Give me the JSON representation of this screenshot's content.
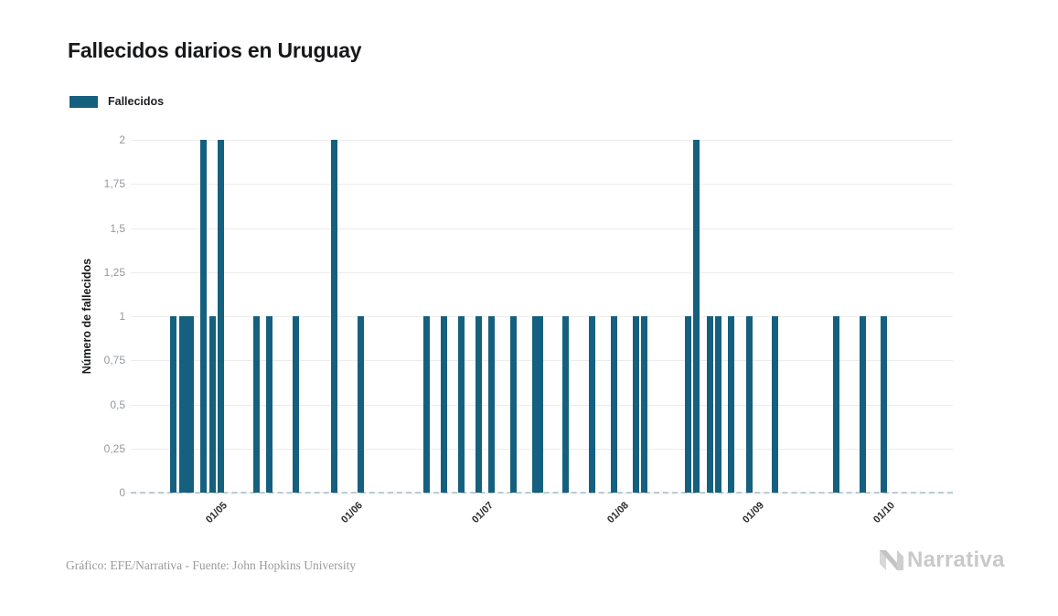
{
  "title": "Fallecidos diarios en Uruguay",
  "legend": {
    "label": "Fallecidos"
  },
  "footer": {
    "credit": "Gráfico: EFE/Narrativa - Fuente: John Hopkins University"
  },
  "logo": {
    "text": "Narrativa",
    "icon": "narrativa-n-icon",
    "color": "#c9c9c9"
  },
  "colors": {
    "bar": "#15607E",
    "grid": "#ececec",
    "y_tick_label": "#94999e",
    "x_tick_label": "#2b2b2b",
    "title": "#17181a",
    "footer_text": "#9b9b9b",
    "baseline_dash": "rgba(21,96,126,0.28)"
  },
  "chart_data": {
    "type": "bar",
    "title": "Fallecidos diarios en Uruguay",
    "xlabel": "",
    "ylabel": "Número de fallecidos",
    "ylim": [
      0,
      2
    ],
    "y_tick_step": 0.25,
    "y_ticks": [
      {
        "label": "2",
        "value": 2
      },
      {
        "label": "1,75",
        "value": 1.75
      },
      {
        "label": "1,5",
        "value": 1.5
      },
      {
        "label": "1,25",
        "value": 1.25
      },
      {
        "label": "1",
        "value": 1
      },
      {
        "label": "0,75",
        "value": 0.75
      },
      {
        "label": "0,5",
        "value": 0.5
      },
      {
        "label": "0,25",
        "value": 0.25
      },
      {
        "label": "0",
        "value": 0
      }
    ],
    "x_ticks": [
      "01/05",
      "01/06",
      "01/07",
      "01/08",
      "01/09",
      "01/10"
    ],
    "x_domain": {
      "start": "11/04/2020",
      "end": "17/10/2020",
      "start_doy": 102.25,
      "end_doy": 290.75
    },
    "grid": "horizontal",
    "legend_position": "top-left",
    "series_name": "Fallecidos",
    "points": [
      {
        "date": "21/04",
        "value": 1
      },
      {
        "date": "23/04",
        "value": 1
      },
      {
        "date": "24/04",
        "value": 1
      },
      {
        "date": "25/04",
        "value": 1
      },
      {
        "date": "28/04",
        "value": 2
      },
      {
        "date": "30/04",
        "value": 1
      },
      {
        "date": "02/05",
        "value": 2
      },
      {
        "date": "10/05",
        "value": 1
      },
      {
        "date": "13/05",
        "value": 1
      },
      {
        "date": "19/05",
        "value": 1
      },
      {
        "date": "28/05",
        "value": 2
      },
      {
        "date": "03/06",
        "value": 1
      },
      {
        "date": "18/06",
        "value": 1
      },
      {
        "date": "22/06",
        "value": 1
      },
      {
        "date": "26/06",
        "value": 1
      },
      {
        "date": "30/06",
        "value": 1
      },
      {
        "date": "03/07",
        "value": 1
      },
      {
        "date": "08/07",
        "value": 1
      },
      {
        "date": "13/07",
        "value": 1
      },
      {
        "date": "14/07",
        "value": 1
      },
      {
        "date": "20/07",
        "value": 1
      },
      {
        "date": "26/07",
        "value": 1
      },
      {
        "date": "31/07",
        "value": 1
      },
      {
        "date": "05/08",
        "value": 1
      },
      {
        "date": "07/08",
        "value": 1
      },
      {
        "date": "17/08",
        "value": 1
      },
      {
        "date": "19/08",
        "value": 2
      },
      {
        "date": "22/08",
        "value": 1
      },
      {
        "date": "24/08",
        "value": 1
      },
      {
        "date": "27/08",
        "value": 1
      },
      {
        "date": "31/08",
        "value": 1
      },
      {
        "date": "06/09",
        "value": 1
      },
      {
        "date": "20/09",
        "value": 1
      },
      {
        "date": "26/09",
        "value": 1
      },
      {
        "date": "01/10",
        "value": 1
      }
    ]
  }
}
